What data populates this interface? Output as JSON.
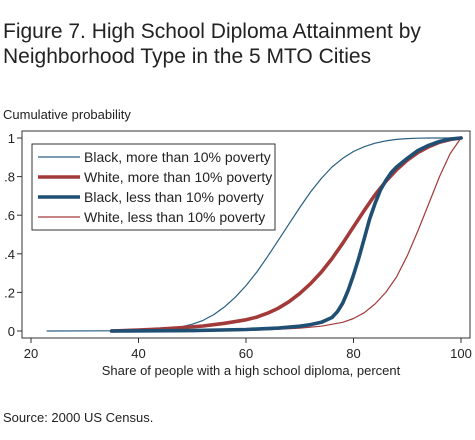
{
  "figure": {
    "title": "Figure 7. High School Diploma Attainment by Neighborhood Type in the 5 MTO Cities",
    "source": "Source: 2000 US Census."
  },
  "chart_data": {
    "type": "line",
    "title": "Figure 7. High School Diploma Attainment by Neighborhood Type in the 5 MTO Cities",
    "ylabel": "Cumulative probability",
    "xlabel": "Share of people with a high school diploma, percent",
    "xlim": [
      20,
      100
    ],
    "ylim": [
      0,
      1
    ],
    "xticks": [
      20,
      40,
      60,
      80,
      100
    ],
    "xtick_labels": [
      "20",
      "40",
      "60",
      "80",
      "100"
    ],
    "yticks": [
      0,
      0.2,
      0.4,
      0.6,
      0.8,
      1
    ],
    "ytick_labels": [
      "0",
      ".2",
      ".4",
      ".6",
      ".8",
      "1"
    ],
    "grid": false,
    "legend": "top-left",
    "series": [
      {
        "name": "Black, more than 10% poverty",
        "color": "#2a5f82",
        "style": "thin",
        "x": [
          23,
          35,
          40,
          44,
          48,
          50,
          52,
          54,
          56,
          58,
          60,
          62,
          64,
          66,
          68,
          70,
          72,
          74,
          76,
          78,
          80,
          82,
          84,
          86,
          88,
          90,
          92,
          94,
          96,
          98,
          100
        ],
        "y": [
          0,
          0.001,
          0.004,
          0.01,
          0.022,
          0.035,
          0.055,
          0.085,
          0.125,
          0.175,
          0.235,
          0.305,
          0.385,
          0.47,
          0.555,
          0.64,
          0.72,
          0.79,
          0.85,
          0.895,
          0.93,
          0.955,
          0.973,
          0.985,
          0.993,
          0.997,
          0.999,
          1,
          1,
          1,
          1
        ]
      },
      {
        "name": "White, more than 10% poverty",
        "color": "#a33a3a",
        "style": "thick",
        "x": [
          35,
          40,
          44,
          48,
          52,
          56,
          60,
          62,
          64,
          66,
          68,
          70,
          72,
          74,
          76,
          78,
          80,
          82,
          84,
          86,
          88,
          90,
          92,
          94,
          96,
          98,
          100
        ],
        "y": [
          0,
          0.005,
          0.01,
          0.017,
          0.026,
          0.04,
          0.058,
          0.072,
          0.092,
          0.118,
          0.152,
          0.195,
          0.245,
          0.305,
          0.375,
          0.455,
          0.54,
          0.625,
          0.705,
          0.775,
          0.835,
          0.885,
          0.925,
          0.955,
          0.978,
          0.992,
          1
        ]
      },
      {
        "name": "Black, less than 10% poverty",
        "color": "#1f4f73",
        "style": "thick",
        "x": [
          35,
          50,
          60,
          66,
          70,
          72,
          74,
          76,
          77,
          78,
          79,
          80,
          81,
          82,
          83,
          84,
          85,
          86,
          87,
          88,
          90,
          92,
          94,
          96,
          98,
          100
        ],
        "y": [
          0,
          0.002,
          0.008,
          0.015,
          0.025,
          0.033,
          0.045,
          0.07,
          0.1,
          0.145,
          0.21,
          0.29,
          0.38,
          0.48,
          0.58,
          0.66,
          0.73,
          0.78,
          0.82,
          0.85,
          0.895,
          0.935,
          0.962,
          0.982,
          0.995,
          1
        ]
      },
      {
        "name": "White, less than 10% poverty",
        "color": "#a33a3a",
        "style": "thin",
        "x": [
          45,
          55,
          60,
          65,
          70,
          74,
          78,
          80,
          82,
          84,
          86,
          88,
          90,
          92,
          94,
          96,
          98,
          100
        ],
        "y": [
          0,
          0.002,
          0.004,
          0.008,
          0.015,
          0.025,
          0.045,
          0.065,
          0.095,
          0.14,
          0.2,
          0.28,
          0.39,
          0.52,
          0.66,
          0.8,
          0.92,
          1
        ]
      }
    ]
  }
}
